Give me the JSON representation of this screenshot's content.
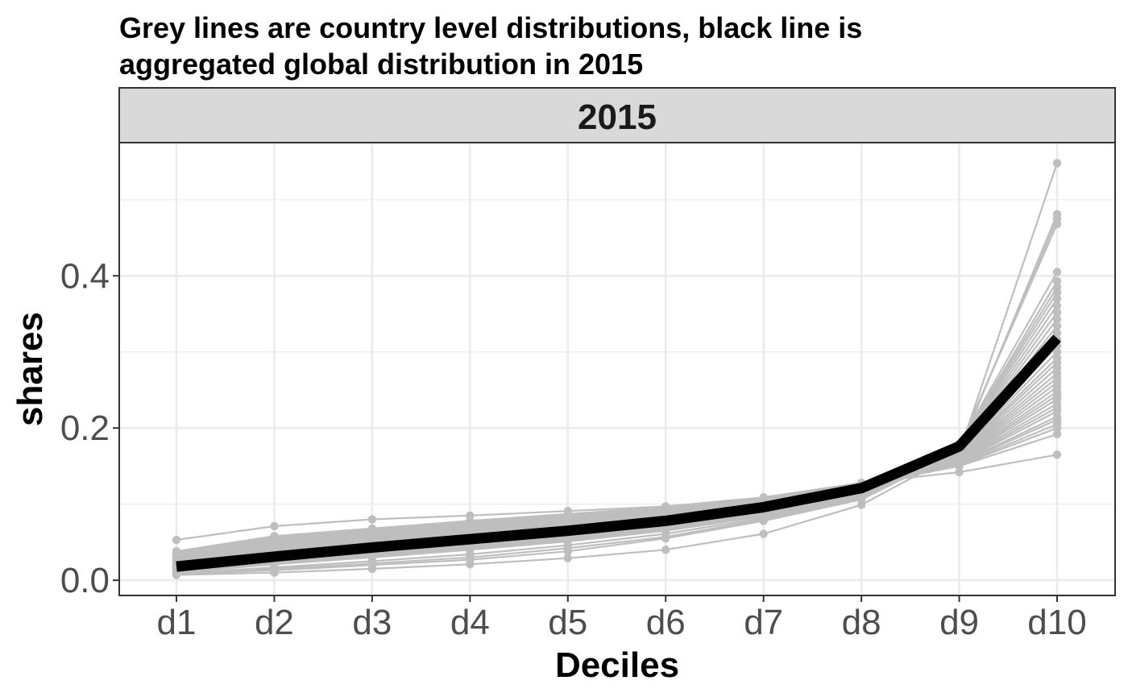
{
  "chart_data": {
    "type": "line",
    "title_lines": [
      "Grey lines are country level distributions, black line is",
      "aggregated global distribution in 2015"
    ],
    "facet_label": "2015",
    "xlabel": "Deciles",
    "ylabel": "shares",
    "categories": [
      "d1",
      "d2",
      "d3",
      "d4",
      "d5",
      "d6",
      "d7",
      "d8",
      "d9",
      "d10"
    ],
    "y_ticks": [
      {
        "value": 0.0,
        "label": "0.0"
      },
      {
        "value": 0.2,
        "label": "0.2"
      },
      {
        "value": 0.4,
        "label": "0.4"
      }
    ],
    "ylim": [
      -0.02,
      0.575
    ],
    "grid": true,
    "colors": {
      "country": "#bebebe",
      "global": "#000000",
      "strip": "#d9d9d9",
      "grid": "#ebebeb"
    },
    "global_series": {
      "values": [
        0.018,
        0.031,
        0.043,
        0.054,
        0.065,
        0.078,
        0.096,
        0.121,
        0.176,
        0.318
      ]
    },
    "country_series": [
      [
        0.053,
        0.071,
        0.08,
        0.085,
        0.091,
        0.097,
        0.109,
        0.128,
        0.142,
        0.165
      ],
      [
        0.038,
        0.058,
        0.068,
        0.078,
        0.087,
        0.096,
        0.108,
        0.125,
        0.15,
        0.192
      ],
      [
        0.036,
        0.056,
        0.067,
        0.077,
        0.086,
        0.095,
        0.107,
        0.125,
        0.151,
        0.2
      ],
      [
        0.034,
        0.055,
        0.066,
        0.076,
        0.085,
        0.095,
        0.107,
        0.125,
        0.152,
        0.205
      ],
      [
        0.033,
        0.054,
        0.065,
        0.075,
        0.085,
        0.094,
        0.106,
        0.124,
        0.153,
        0.211
      ],
      [
        0.032,
        0.053,
        0.064,
        0.074,
        0.084,
        0.094,
        0.106,
        0.124,
        0.154,
        0.215
      ],
      [
        0.031,
        0.052,
        0.063,
        0.073,
        0.083,
        0.093,
        0.105,
        0.124,
        0.155,
        0.222
      ],
      [
        0.03,
        0.051,
        0.062,
        0.072,
        0.082,
        0.092,
        0.105,
        0.123,
        0.156,
        0.227
      ],
      [
        0.029,
        0.05,
        0.061,
        0.071,
        0.081,
        0.092,
        0.104,
        0.123,
        0.157,
        0.232
      ],
      [
        0.028,
        0.049,
        0.06,
        0.07,
        0.08,
        0.091,
        0.104,
        0.122,
        0.158,
        0.238
      ],
      [
        0.028,
        0.048,
        0.059,
        0.069,
        0.079,
        0.09,
        0.103,
        0.122,
        0.159,
        0.243
      ],
      [
        0.027,
        0.047,
        0.058,
        0.068,
        0.078,
        0.089,
        0.102,
        0.122,
        0.16,
        0.248
      ],
      [
        0.026,
        0.046,
        0.057,
        0.067,
        0.077,
        0.088,
        0.102,
        0.121,
        0.161,
        0.254
      ],
      [
        0.025,
        0.045,
        0.056,
        0.066,
        0.076,
        0.087,
        0.101,
        0.121,
        0.162,
        0.26
      ],
      [
        0.024,
        0.044,
        0.055,
        0.065,
        0.075,
        0.086,
        0.1,
        0.12,
        0.163,
        0.266
      ],
      [
        0.023,
        0.043,
        0.054,
        0.064,
        0.074,
        0.085,
        0.1,
        0.12,
        0.164,
        0.272
      ],
      [
        0.022,
        0.042,
        0.053,
        0.063,
        0.073,
        0.084,
        0.099,
        0.12,
        0.165,
        0.279
      ],
      [
        0.021,
        0.04,
        0.051,
        0.062,
        0.072,
        0.083,
        0.098,
        0.119,
        0.166,
        0.286
      ],
      [
        0.02,
        0.039,
        0.05,
        0.06,
        0.071,
        0.082,
        0.097,
        0.119,
        0.167,
        0.292
      ],
      [
        0.019,
        0.038,
        0.049,
        0.059,
        0.07,
        0.081,
        0.096,
        0.118,
        0.168,
        0.3
      ],
      [
        0.018,
        0.036,
        0.047,
        0.058,
        0.068,
        0.08,
        0.096,
        0.118,
        0.169,
        0.308
      ],
      [
        0.017,
        0.035,
        0.046,
        0.057,
        0.067,
        0.079,
        0.095,
        0.117,
        0.17,
        0.316
      ],
      [
        0.016,
        0.034,
        0.045,
        0.055,
        0.066,
        0.078,
        0.094,
        0.117,
        0.171,
        0.325
      ],
      [
        0.015,
        0.032,
        0.043,
        0.054,
        0.064,
        0.076,
        0.093,
        0.116,
        0.172,
        0.334
      ],
      [
        0.014,
        0.031,
        0.042,
        0.052,
        0.063,
        0.075,
        0.092,
        0.116,
        0.173,
        0.343
      ],
      [
        0.013,
        0.029,
        0.04,
        0.051,
        0.061,
        0.074,
        0.091,
        0.115,
        0.174,
        0.352
      ],
      [
        0.012,
        0.028,
        0.038,
        0.049,
        0.06,
        0.072,
        0.09,
        0.115,
        0.175,
        0.361
      ],
      [
        0.012,
        0.026,
        0.036,
        0.047,
        0.058,
        0.071,
        0.089,
        0.114,
        0.176,
        0.37
      ],
      [
        0.011,
        0.025,
        0.034,
        0.045,
        0.056,
        0.069,
        0.088,
        0.114,
        0.177,
        0.378
      ],
      [
        0.011,
        0.024,
        0.033,
        0.043,
        0.054,
        0.068,
        0.087,
        0.113,
        0.178,
        0.385
      ],
      [
        0.01,
        0.023,
        0.032,
        0.042,
        0.053,
        0.067,
        0.086,
        0.113,
        0.178,
        0.393
      ],
      [
        0.01,
        0.021,
        0.03,
        0.04,
        0.051,
        0.065,
        0.084,
        0.112,
        0.179,
        0.405
      ],
      [
        0.009,
        0.017,
        0.025,
        0.034,
        0.046,
        0.061,
        0.082,
        0.11,
        0.176,
        0.468
      ],
      [
        0.008,
        0.015,
        0.022,
        0.03,
        0.042,
        0.057,
        0.08,
        0.108,
        0.174,
        0.475
      ],
      [
        0.008,
        0.013,
        0.02,
        0.027,
        0.038,
        0.055,
        0.078,
        0.106,
        0.17,
        0.481
      ],
      [
        0.007,
        0.01,
        0.015,
        0.021,
        0.029,
        0.04,
        0.061,
        0.099,
        0.168,
        0.548
      ]
    ]
  }
}
